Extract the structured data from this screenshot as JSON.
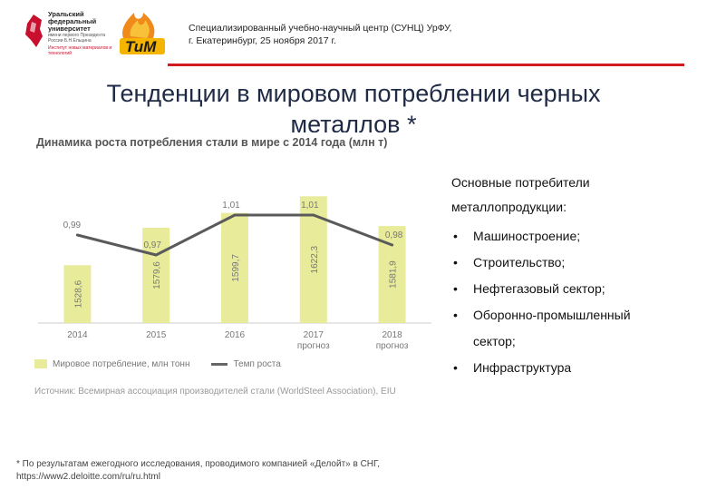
{
  "header": {
    "logo1_lines": [
      "Уральский",
      "федеральный",
      "университет"
    ],
    "logo1_sub": "имени первого Президента России Б.Н.Ельцина",
    "logo1_sub2": "Институт новых материалов и технологий",
    "logo2_text": "ТиМ",
    "line1": "Специализированный учебно-научный центр (СУНЦ) УрФУ,",
    "line2": "г. Екатеринбург, 25 ноября 2017 г.",
    "accent": "#d01c1f"
  },
  "title": {
    "line1": "Тенденции в мировом потреблении черных",
    "line2": "металлов *"
  },
  "chart_data": {
    "type": "bar",
    "title": "Динамика роста потребления стали в мире с 2014 года (млн т)",
    "categories": [
      "2014",
      "2015",
      "2016",
      "2017",
      "2018"
    ],
    "category_sub": [
      "",
      "",
      "",
      "прогноз",
      "прогноз"
    ],
    "series": [
      {
        "name": "Мировое потребление, млн тонн",
        "kind": "bar",
        "values": [
          1528.6,
          1579.6,
          1599.7,
          1622.3,
          1581.9
        ],
        "labels": [
          "1528,6",
          "1579,6",
          "1599,7",
          "1622,3",
          "1581,9"
        ],
        "color": "#e8ec9a"
      },
      {
        "name": "Темп роста",
        "kind": "line",
        "values": [
          0.99,
          0.97,
          1.01,
          1.01,
          0.98
        ],
        "labels": [
          "0,99",
          "0,97",
          "1,01",
          "1,01",
          "0,98"
        ],
        "color": "#5a5a5a"
      }
    ],
    "grid": true,
    "legend_position": "bottom-left",
    "source": "Источник: Всемирная ассоциация производителей стали (WorldSteel Association), EIU"
  },
  "right": {
    "heading1": "Основные потребители",
    "heading2": "металлопродукции:",
    "bullet": "•",
    "items": [
      "Машиностроение;",
      "Строительство;",
      "Нефтегазовый сектор;",
      "Оборонно-промышленный",
      "Инфраструктура"
    ],
    "item4_cont": "сектор;"
  },
  "footnote": {
    "line1": "* По результатам ежегодного исследования, проводимого компанией «Делойт» в СНГ,",
    "line2": "https://www2.deloitte.com/ru/ru.html"
  }
}
